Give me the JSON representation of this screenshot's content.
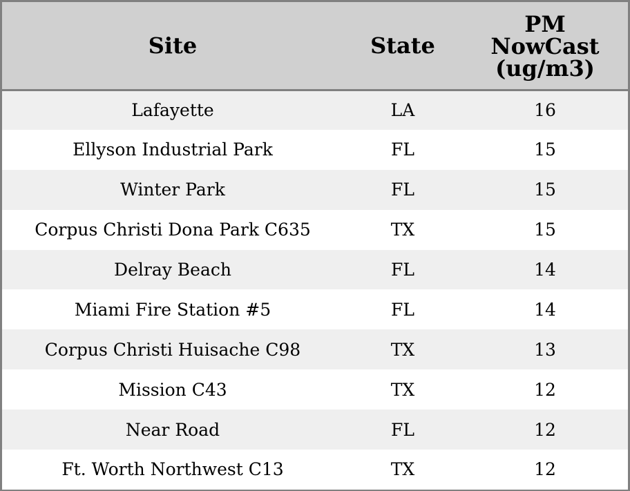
{
  "chart_data": {
    "type": "table",
    "columns": [
      "Site",
      "State",
      "PM NowCast (ug/m3)"
    ],
    "header_lines": {
      "site": [
        "Site"
      ],
      "state": [
        "State"
      ],
      "pm": [
        "PM",
        "NowCast",
        "(ug/m3)"
      ]
    },
    "rows": [
      {
        "site": "Lafayette",
        "state": "LA",
        "pm": "16"
      },
      {
        "site": "Ellyson Industrial Park",
        "state": "FL",
        "pm": "15"
      },
      {
        "site": "Winter Park",
        "state": "FL",
        "pm": "15"
      },
      {
        "site": "Corpus Christi Dona Park C635",
        "state": "TX",
        "pm": "15"
      },
      {
        "site": "Delray Beach",
        "state": "FL",
        "pm": "14"
      },
      {
        "site": "Miami Fire Station #5",
        "state": "FL",
        "pm": "14"
      },
      {
        "site": "Corpus Christi Huisache C98",
        "state": "TX",
        "pm": "13"
      },
      {
        "site": "Mission C43",
        "state": "TX",
        "pm": "12"
      },
      {
        "site": "Near Road",
        "state": "FL",
        "pm": "12"
      },
      {
        "site": "Ft. Worth Northwest C13",
        "state": "TX",
        "pm": "12"
      }
    ],
    "colors": {
      "header_background": "#d0d0d0",
      "striped_row": "#efefef",
      "plain_row": "#ffffff",
      "border": "#808080"
    }
  }
}
